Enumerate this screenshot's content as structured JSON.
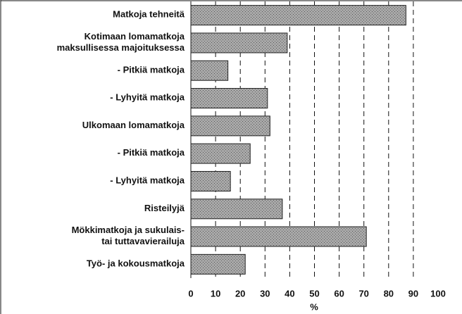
{
  "chart_data": {
    "type": "bar",
    "orientation": "horizontal",
    "categories": [
      "Matkoja tehneitä",
      "Kotimaan lomamatkoja\nmaksullisessa majoituksessa",
      "- Pitkiä matkoja",
      "- Lyhyitä matkoja",
      "Ulkomaan lomamatkoja",
      "- Pitkiä matkoja",
      "- Lyhyitä matkoja",
      "Risteilyjä",
      "Mökkimatkoja ja sukulais-\ntai tuttavavierailuja",
      "Työ- ja kokousmatkoja"
    ],
    "values": [
      87,
      39,
      15,
      31,
      32,
      24,
      16,
      37,
      71,
      22
    ],
    "color": "#9a9a9a",
    "xlabel": "%",
    "xlim": [
      0,
      100
    ],
    "xticks": [
      0,
      10,
      20,
      30,
      40,
      50,
      60,
      70,
      80,
      90,
      100
    ],
    "grid": true
  }
}
